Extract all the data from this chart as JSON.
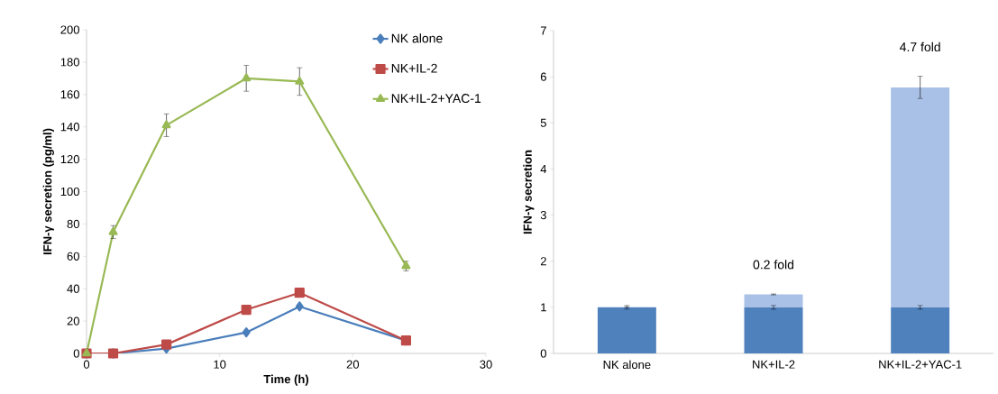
{
  "chart_data": [
    {
      "type": "line",
      "xlabel": "Time (h)",
      "ylabel": "IFN-γ secretion (pg/ml)",
      "xlim": [
        0,
        30
      ],
      "xticks": [
        0,
        10,
        20,
        30
      ],
      "ylim": [
        0,
        200
      ],
      "yticks": [
        0,
        20,
        40,
        60,
        80,
        100,
        120,
        140,
        160,
        180,
        200
      ],
      "grid": false,
      "legend": "top right",
      "line_style": "solid",
      "series": [
        {
          "name": "NK alone",
          "color": "#4a7ebb",
          "marker": "diamond",
          "x": [
            0,
            2,
            6,
            12,
            16,
            24
          ],
          "values": [
            0,
            0,
            3,
            13,
            29,
            8
          ]
        },
        {
          "name": "NK+IL-2",
          "color": "#be4b48",
          "marker": "square",
          "x": [
            0,
            2,
            6,
            12,
            16,
            24
          ],
          "values": [
            0,
            0,
            5.5,
            27,
            37.5,
            8
          ]
        },
        {
          "name": "NK+IL-2+YAC-1",
          "color": "#98b954",
          "marker": "triangle",
          "x": [
            0,
            2,
            6,
            12,
            16,
            24
          ],
          "values": [
            0,
            75,
            141,
            170,
            168,
            54
          ],
          "errors": [
            null,
            4,
            7,
            8,
            8.5,
            3
          ]
        }
      ]
    },
    {
      "type": "bar",
      "stacked": true,
      "ylabel": "IFN-γ secretion",
      "categories": [
        "NK alone",
        "NK+IL-2",
        "NK+IL-2+YAC-1"
      ],
      "ylim": [
        0,
        7
      ],
      "yticks": [
        0,
        1,
        2,
        3,
        4,
        5,
        6,
        7
      ],
      "grid": false,
      "legend": false,
      "series": [
        {
          "color": "#4f81bd",
          "values": [
            1,
            1,
            1
          ],
          "errors": [
            0.04,
            0.04,
            0.04
          ]
        },
        {
          "color": "#a9c1e6",
          "values": [
            0,
            0.28,
            4.77
          ],
          "errors": [
            null,
            0.01,
            0.24
          ]
        }
      ],
      "annotations": [
        "0.2 fold",
        "4.7 fold"
      ]
    }
  ]
}
